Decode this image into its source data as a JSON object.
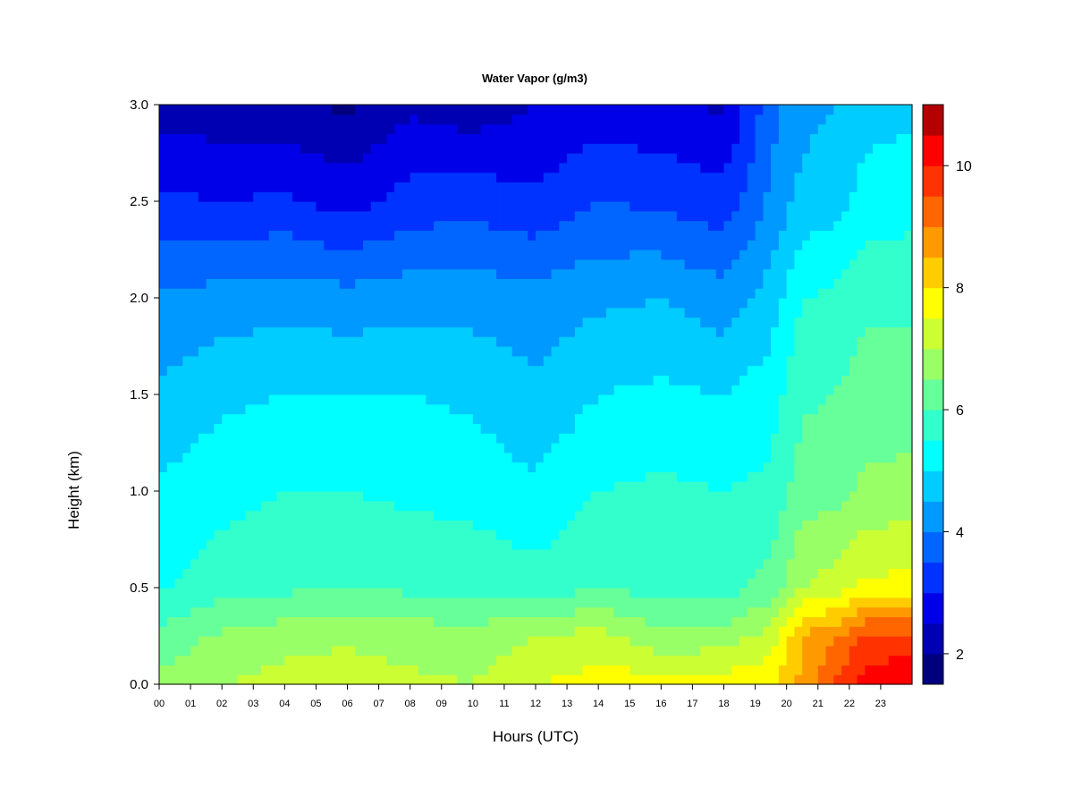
{
  "chart_data": {
    "type": "heatmap",
    "title": "Water Vapor (g/m3)",
    "xlabel": "Hours (UTC)",
    "ylabel": "Height (km)",
    "xlim": [
      0,
      24
    ],
    "ylim": [
      0.0,
      3.0
    ],
    "x_ticks": [
      "00",
      "01",
      "02",
      "03",
      "04",
      "05",
      "06",
      "07",
      "08",
      "09",
      "10",
      "11",
      "12",
      "13",
      "14",
      "15",
      "16",
      "17",
      "18",
      "19",
      "20",
      "21",
      "22",
      "23"
    ],
    "y_ticks": [
      "0.0",
      "0.5",
      "1.0",
      "1.5",
      "2.0",
      "2.5",
      "3.0"
    ],
    "colorbar": {
      "levels": [
        1.5,
        2.0,
        2.5,
        3.0,
        3.5,
        4.0,
        4.5,
        5.0,
        5.5,
        6.0,
        6.5,
        7.0,
        7.5,
        8.0,
        8.5,
        9.0,
        9.5,
        10.0,
        10.5,
        11.0
      ],
      "ticks": [
        "2",
        "4",
        "6",
        "8",
        "10"
      ],
      "colors": [
        "#00007F",
        "#0000B3",
        "#0000E8",
        "#0033FF",
        "#0066FF",
        "#0099FF",
        "#00CCFF",
        "#00FFFF",
        "#33FFCC",
        "#66FF99",
        "#99FF66",
        "#CCFF33",
        "#FFFF00",
        "#FFCC00",
        "#FF9900",
        "#FF6600",
        "#FF3300",
        "#FF0000",
        "#B30000"
      ]
    },
    "hours": [
      0,
      2,
      4,
      6,
      8,
      10,
      12,
      14,
      16,
      18,
      19.5,
      20.5,
      21.5,
      22.5,
      24
    ],
    "heights": [
      0.0,
      0.25,
      0.5,
      1.0,
      1.5,
      2.0,
      2.5,
      3.0
    ],
    "values": [
      [
        6.6,
        7.0,
        7.2,
        7.3,
        7.1,
        7.0,
        7.5,
        7.7,
        7.8,
        7.8,
        7.9,
        8.6,
        9.5,
        10.3,
        10.5
      ],
      [
        6.2,
        6.6,
        6.8,
        6.9,
        6.8,
        6.7,
        7.0,
        7.2,
        6.6,
        6.7,
        7.2,
        8.6,
        8.9,
        9.6,
        9.6
      ],
      [
        5.4,
        5.8,
        5.9,
        6.0,
        5.9,
        5.9,
        5.7,
        6.0,
        5.8,
        5.8,
        6.2,
        7.0,
        7.2,
        7.6,
        7.7
      ],
      [
        5.1,
        5.3,
        5.5,
        5.5,
        5.4,
        5.3,
        5.1,
        5.5,
        5.6,
        5.5,
        5.6,
        6.3,
        6.3,
        6.6,
        6.7
      ],
      [
        4.6,
        4.9,
        5.0,
        5.0,
        5.0,
        4.9,
        4.6,
        5.0,
        5.1,
        5.0,
        5.3,
        5.9,
        6.0,
        6.2,
        6.2
      ],
      [
        4.1,
        4.2,
        4.3,
        4.2,
        4.3,
        4.3,
        4.2,
        4.4,
        4.5,
        4.2,
        4.7,
        5.5,
        5.6,
        5.9,
        5.9
      ],
      [
        3.1,
        3.0,
        3.1,
        2.8,
        3.2,
        3.3,
        3.1,
        3.5,
        3.4,
        3.2,
        4.1,
        4.7,
        4.8,
        5.2,
        5.3
      ],
      [
        2.3,
        2.2,
        2.1,
        1.9,
        2.4,
        2.2,
        2.5,
        2.7,
        2.6,
        2.4,
        3.8,
        4.3,
        4.5,
        4.8,
        4.9
      ]
    ]
  }
}
